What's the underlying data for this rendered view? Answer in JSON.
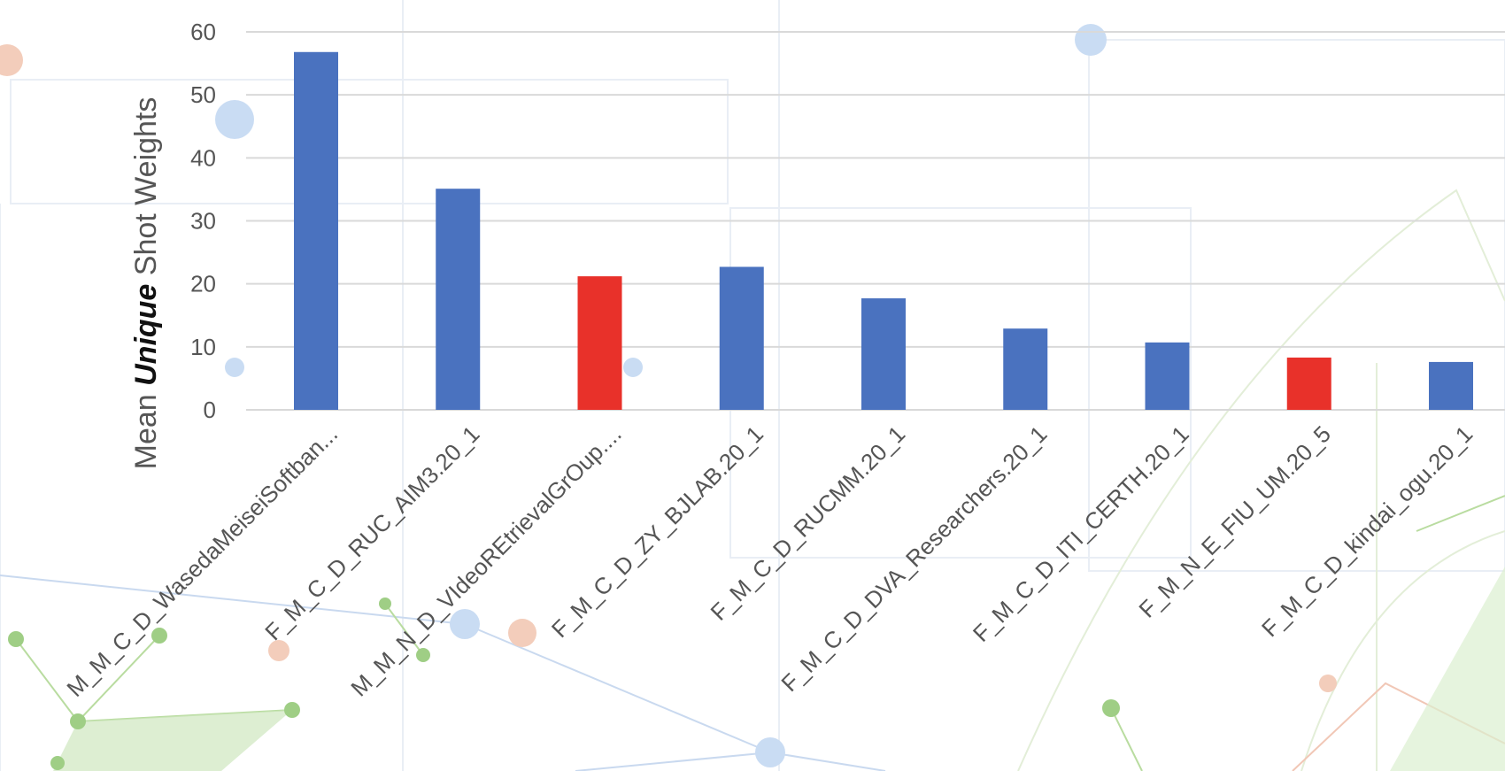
{
  "chart_data": {
    "type": "bar",
    "title": "",
    "xlabel": "",
    "ylabel": {
      "before": "Mean ",
      "emphasis": "Unique",
      "after": " Shot Weights"
    },
    "ylim": [
      0,
      60
    ],
    "yticks": [
      0,
      10,
      20,
      30,
      40,
      50,
      60
    ],
    "grid": true,
    "legend": "none",
    "categories": [
      "M_M_C_D_WasedaMeiseiSoftban...",
      "F_M_C_D_RUC_AIM3.20_1",
      "M_M_N_D_VIdeoREtrievalGrOup....",
      "F_M_C_D_ZY_BJLAB.20_1",
      "F_M_C_D_RUCMM.20_1",
      "F_M_C_D_DVA_Researchers.20_1",
      "F_M_C_D_ITI_CERTH.20_1",
      "F_M_N_E_FIU_UM.20_5",
      "F_M_C_D_kindai_ogu.20_1"
    ],
    "values": [
      56.8,
      35.1,
      21.2,
      22.7,
      17.7,
      12.9,
      10.7,
      8.3,
      7.6
    ],
    "bar_colors": [
      "#4A72BF",
      "#4A72BF",
      "#E8312A",
      "#4A72BF",
      "#4A72BF",
      "#4A72BF",
      "#4A72BF",
      "#E8312A",
      "#4A72BF"
    ]
  }
}
